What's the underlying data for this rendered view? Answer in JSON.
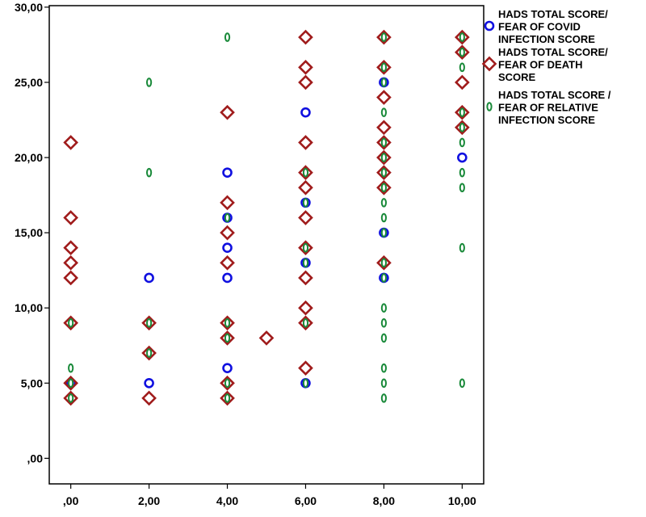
{
  "chart_data": {
    "type": "scatter",
    "title": "",
    "xlabel": "",
    "ylabel": "",
    "xlim": [
      -0.55,
      10.55
    ],
    "ylim": [
      -1.7,
      30.1
    ],
    "x_ticks": [
      0,
      2,
      4,
      6,
      8,
      10
    ],
    "x_tick_labels": [
      ",00",
      "2,00",
      "4,00",
      "6,00",
      "8,00",
      "10,00"
    ],
    "y_ticks": [
      0,
      5,
      10,
      15,
      20,
      25,
      30
    ],
    "y_tick_labels": [
      ",00",
      "5,00",
      "10,00",
      "15,00",
      "20,00",
      "25,00",
      "30,00"
    ],
    "grid": false,
    "legend_position": "right",
    "series": [
      {
        "name": "HADS TOTAL SCORE/ FEAR OF COVID INFECTION SCORE",
        "legend_lines": [
          "HADS TOTAL SCORE/",
          " FEAR OF COVID",
          "INFECTION SCORE"
        ],
        "marker": "circle",
        "color": "#1010e0",
        "points": [
          [
            0,
            5
          ],
          [
            2,
            5
          ],
          [
            2,
            12
          ],
          [
            4,
            6
          ],
          [
            4,
            12
          ],
          [
            4,
            14
          ],
          [
            4,
            16
          ],
          [
            4,
            19
          ],
          [
            6,
            5
          ],
          [
            6,
            13
          ],
          [
            6,
            17
          ],
          [
            6,
            23
          ],
          [
            8,
            12
          ],
          [
            8,
            15
          ],
          [
            8,
            25
          ],
          [
            10,
            20
          ]
        ]
      },
      {
        "name": "HADS TOTAL SCORE/ FEAR OF DEATH SCORE",
        "legend_lines": [
          "HADS TOTAL SCORE/",
          " FEAR OF DEATH",
          "SCORE"
        ],
        "marker": "diamond",
        "color": "#a01c1c",
        "points": [
          [
            0,
            4
          ],
          [
            0,
            5
          ],
          [
            0,
            9
          ],
          [
            0,
            12
          ],
          [
            0,
            13
          ],
          [
            0,
            14
          ],
          [
            0,
            16
          ],
          [
            0,
            21
          ],
          [
            2,
            4
          ],
          [
            2,
            7
          ],
          [
            2,
            9
          ],
          [
            4,
            4
          ],
          [
            4,
            5
          ],
          [
            4,
            8
          ],
          [
            4,
            9
          ],
          [
            4,
            13
          ],
          [
            4,
            15
          ],
          [
            4,
            17
          ],
          [
            4,
            23
          ],
          [
            5,
            8
          ],
          [
            6,
            6
          ],
          [
            6,
            9
          ],
          [
            6,
            10
          ],
          [
            6,
            12
          ],
          [
            6,
            14
          ],
          [
            6,
            16
          ],
          [
            6,
            18
          ],
          [
            6,
            19
          ],
          [
            6,
            21
          ],
          [
            6,
            25
          ],
          [
            6,
            26
          ],
          [
            6,
            28
          ],
          [
            8,
            13
          ],
          [
            8,
            18
          ],
          [
            8,
            19
          ],
          [
            8,
            20
          ],
          [
            8,
            21
          ],
          [
            8,
            22
          ],
          [
            8,
            24
          ],
          [
            8,
            26
          ],
          [
            8,
            28
          ],
          [
            10,
            22
          ],
          [
            10,
            23
          ],
          [
            10,
            25
          ],
          [
            10,
            27
          ],
          [
            10,
            28
          ]
        ]
      },
      {
        "name": "HADS TOTAL SCORE / FEAR OF RELATIVE INFECTION SCORE",
        "legend_lines": [
          "HADS TOTAL SCORE /",
          " FEAR OF RELATIVE",
          "INFECTION SCORE"
        ],
        "marker": "ellipse",
        "color": "#1a8a3a",
        "points": [
          [
            0,
            4
          ],
          [
            0,
            5
          ],
          [
            0,
            6
          ],
          [
            0,
            9
          ],
          [
            2,
            7
          ],
          [
            2,
            9
          ],
          [
            2,
            19
          ],
          [
            2,
            25
          ],
          [
            4,
            4
          ],
          [
            4,
            5
          ],
          [
            4,
            8
          ],
          [
            4,
            9
          ],
          [
            4,
            16
          ],
          [
            4,
            28
          ],
          [
            6,
            5
          ],
          [
            6,
            9
          ],
          [
            6,
            13
          ],
          [
            6,
            14
          ],
          [
            6,
            17
          ],
          [
            6,
            19
          ],
          [
            8,
            4
          ],
          [
            8,
            5
          ],
          [
            8,
            6
          ],
          [
            8,
            8
          ],
          [
            8,
            9
          ],
          [
            8,
            10
          ],
          [
            8,
            12
          ],
          [
            8,
            13
          ],
          [
            8,
            15
          ],
          [
            8,
            16
          ],
          [
            8,
            17
          ],
          [
            8,
            18
          ],
          [
            8,
            19
          ],
          [
            8,
            20
          ],
          [
            8,
            21
          ],
          [
            8,
            23
          ],
          [
            8,
            25
          ],
          [
            8,
            26
          ],
          [
            8,
            28
          ],
          [
            10,
            5
          ],
          [
            10,
            14
          ],
          [
            10,
            18
          ],
          [
            10,
            19
          ],
          [
            10,
            21
          ],
          [
            10,
            22
          ],
          [
            10,
            23
          ],
          [
            10,
            26
          ],
          [
            10,
            27
          ],
          [
            10,
            28
          ]
        ]
      }
    ]
  }
}
